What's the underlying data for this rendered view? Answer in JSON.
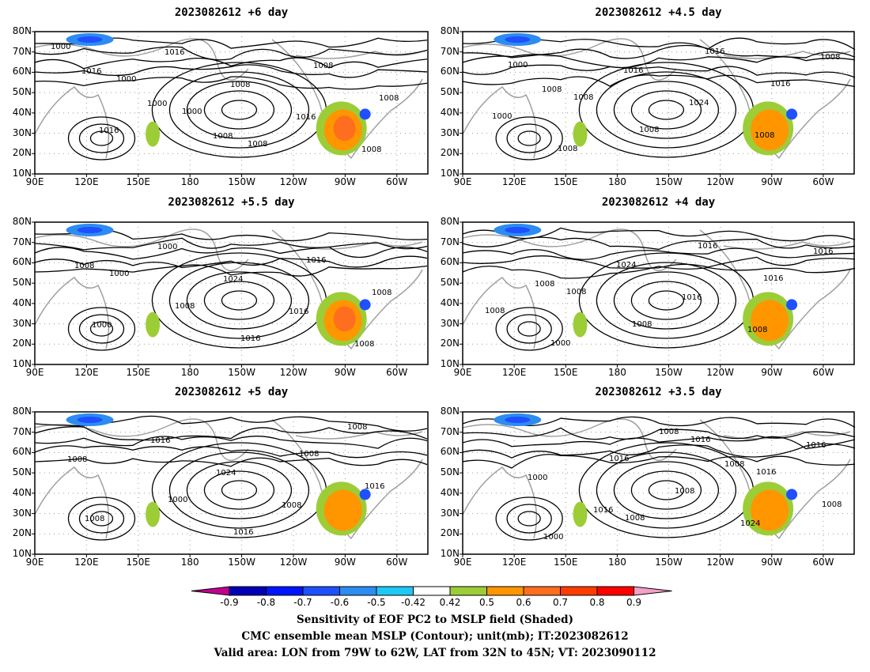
{
  "chart_data": {
    "type": "heatmap",
    "panels": [
      {
        "title": "2023082612  +6 day",
        "contour_labels": [
          "1000",
          "1000",
          "1000",
          "1008",
          "1008",
          "1008",
          "1016",
          "1016",
          "1008",
          "1016",
          "1008",
          "1016",
          "1000",
          "1008"
        ]
      },
      {
        "title": "2023082612  +4.5 day",
        "contour_labels": [
          "1000",
          "1008",
          "1008",
          "1016",
          "1016",
          "1000",
          "1008",
          "1016",
          "1024",
          "1008",
          "1008",
          "1008"
        ]
      },
      {
        "title": "2023082612  +5.5 day",
        "contour_labels": [
          "1000",
          "1008",
          "1016",
          "1016",
          "1008",
          "1000",
          "1000",
          "1024",
          "1016",
          "1008",
          "1008"
        ]
      },
      {
        "title": "2023082612  +4 day",
        "contour_labels": [
          "1008",
          "1008",
          "1016",
          "1016",
          "1008",
          "1000",
          "1024",
          "1016",
          "1008",
          "1016",
          "1008"
        ]
      },
      {
        "title": "2023082612  +5 day",
        "contour_labels": [
          "1000",
          "1016",
          "1008",
          "1016",
          "1008",
          "1016",
          "1024",
          "1008",
          "1008",
          "1008"
        ]
      },
      {
        "title": "2023082612  +3.5 day",
        "contour_labels": [
          "1008",
          "1016",
          "1016",
          "1008",
          "1000",
          "1016",
          "1008",
          "1024",
          "1016",
          "1000",
          "1016",
          "1008",
          "1008"
        ]
      }
    ],
    "y_tick_labels": [
      "80N",
      "70N",
      "60N",
      "50N",
      "40N",
      "30N",
      "20N",
      "10N"
    ],
    "x_tick_labels": [
      "90E",
      "120E",
      "150E",
      "180",
      "150W",
      "120W",
      "90W",
      "60W"
    ],
    "colorbar": {
      "tick_labels": [
        "-0.9",
        "-0.8",
        "-0.7",
        "-0.6",
        "-0.5",
        "-0.42",
        "0.42",
        "0.5",
        "0.6",
        "0.7",
        "0.8",
        "0.9"
      ],
      "colors": [
        "#c2008f",
        "#0000b4",
        "#0014ff",
        "#1e50ff",
        "#2d8cf0",
        "#1ec8f5",
        "#ffffff",
        "#9ccd37",
        "#ff9600",
        "#ff6e1e",
        "#ff3c00",
        "#ff0000",
        "#f5a0c8"
      ]
    },
    "caption_lines": [
      "Sensitivity of EOF PC2 to MSLP field (Shaded)",
      "CMC ensemble mean MSLP (Contour); unit(mb); IT:2023082612",
      "Valid area: LON from 79W to 62W, LAT from 32N to 45N; VT: 2023090112"
    ]
  }
}
